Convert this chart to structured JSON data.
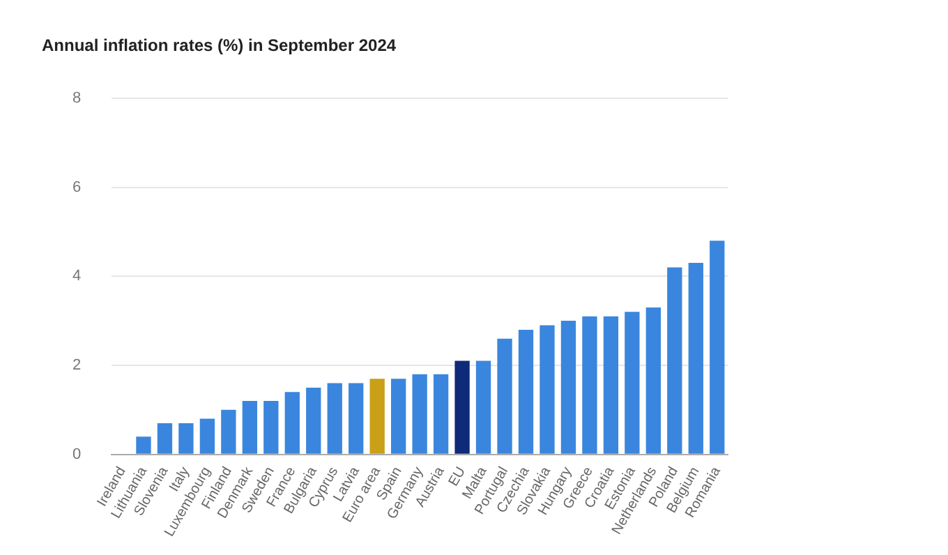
{
  "chart_data": {
    "type": "bar",
    "title": "Annual inflation rates (%) in September 2024",
    "categories": [
      "Ireland",
      "Lithuania",
      "Slovenia",
      "Italy",
      "Luxembourg",
      "Finland",
      "Denmark",
      "Sweden",
      "France",
      "Bulgaria",
      "Cyprus",
      "Latvia",
      "Euro area",
      "Spain",
      "Germany",
      "Austria",
      "EU",
      "Malta",
      "Portugal",
      "Czechia",
      "Slovakia",
      "Hungary",
      "Greece",
      "Croatia",
      "Estonia",
      "Netherlands",
      "Poland",
      "Belgium",
      "Romania"
    ],
    "values": [
      0.0,
      0.4,
      0.7,
      0.7,
      0.8,
      1.0,
      1.2,
      1.2,
      1.4,
      1.5,
      1.6,
      1.6,
      1.7,
      1.7,
      1.8,
      1.8,
      2.1,
      2.1,
      2.6,
      2.8,
      2.9,
      3.0,
      3.1,
      3.1,
      3.2,
      3.3,
      4.2,
      4.3,
      4.8
    ],
    "colors": [
      "#3a86de",
      "#3a86de",
      "#3a86de",
      "#3a86de",
      "#3a86de",
      "#3a86de",
      "#3a86de",
      "#3a86de",
      "#3a86de",
      "#3a86de",
      "#3a86de",
      "#3a86de",
      "#c9a017",
      "#3a86de",
      "#3a86de",
      "#3a86de",
      "#0e2a78",
      "#3a86de",
      "#3a86de",
      "#3a86de",
      "#3a86de",
      "#3a86de",
      "#3a86de",
      "#3a86de",
      "#3a86de",
      "#3a86de",
      "#3a86de",
      "#3a86de",
      "#3a86de"
    ],
    "ylim": [
      0,
      8
    ],
    "yticks": [
      0,
      2,
      4,
      6,
      8
    ],
    "grid": "y",
    "legend": false
  }
}
